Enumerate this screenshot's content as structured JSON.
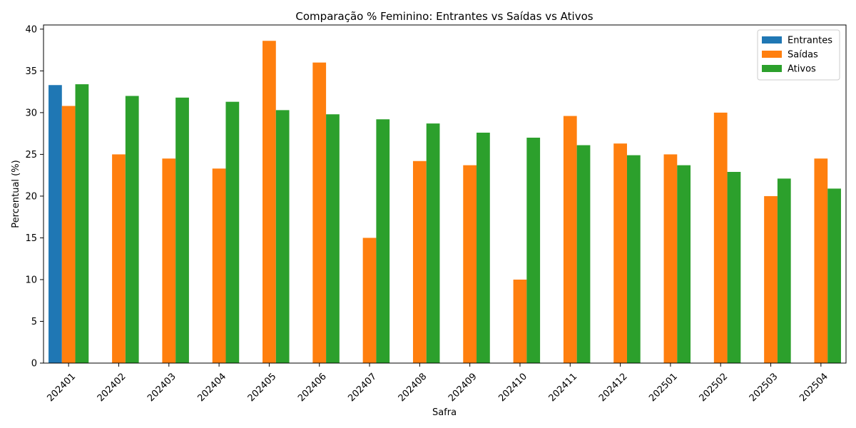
{
  "chart_data": {
    "type": "bar",
    "title": "Comparação % Feminino: Entrantes vs Saídas vs Ativos",
    "xlabel": "Safra",
    "ylabel": "Percentual (%)",
    "ylim": [
      0,
      40.5
    ],
    "yticks": [
      0,
      5,
      10,
      15,
      20,
      25,
      30,
      35,
      40
    ],
    "grid": false,
    "legend_position": "top-right",
    "categories": [
      "202401",
      "202402",
      "202403",
      "202404",
      "202405",
      "202406",
      "202407",
      "202408",
      "202409",
      "202410",
      "202411",
      "202412",
      "202501",
      "202502",
      "202503",
      "202504"
    ],
    "series": [
      {
        "name": "Entrantes",
        "color": "#1f77b4",
        "values": [
          33.3,
          null,
          null,
          null,
          null,
          null,
          null,
          null,
          null,
          null,
          null,
          null,
          null,
          null,
          null,
          null
        ]
      },
      {
        "name": "Saídas",
        "color": "#ff7f0e",
        "values": [
          30.8,
          25.0,
          24.5,
          23.3,
          38.6,
          36.0,
          15.0,
          24.2,
          23.7,
          10.0,
          29.6,
          26.3,
          25.0,
          30.0,
          20.0,
          24.5
        ]
      },
      {
        "name": "Ativos",
        "color": "#2ca02c",
        "values": [
          33.4,
          32.0,
          31.8,
          31.3,
          30.3,
          29.8,
          29.2,
          28.7,
          27.6,
          27.0,
          26.1,
          24.9,
          23.7,
          22.9,
          22.1,
          20.9
        ]
      }
    ]
  }
}
